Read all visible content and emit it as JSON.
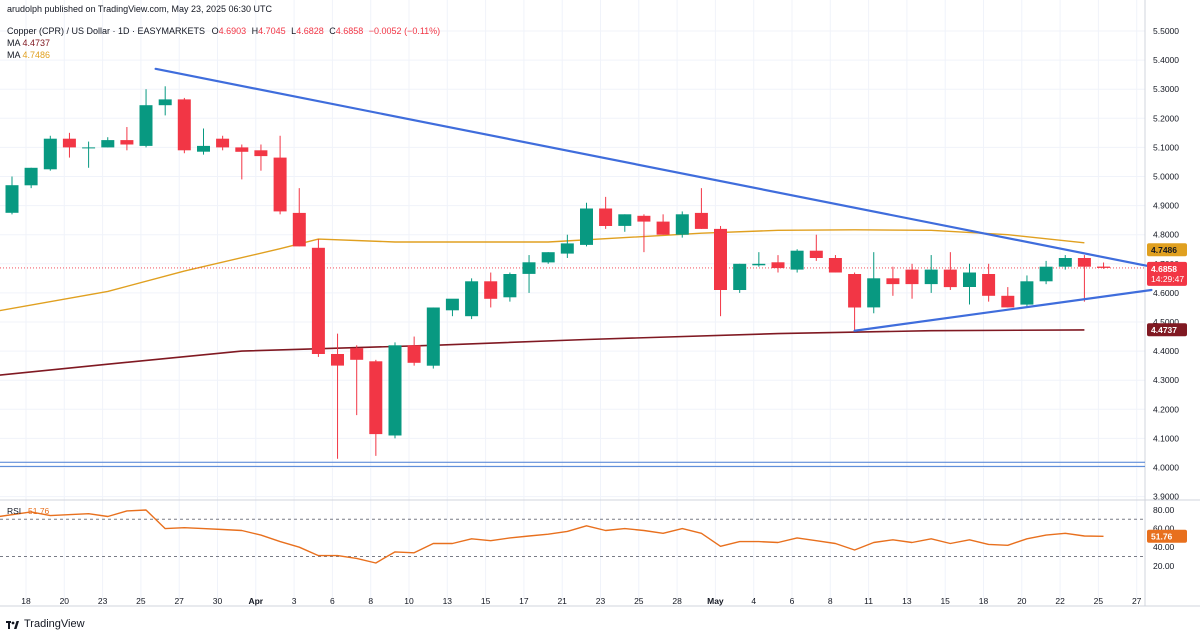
{
  "header": {
    "published": "arudolph published on TradingView.com, May 23, 2025 06:30 UTC",
    "symbol": "Copper (CPR) / US Dollar · 1D · EASYMARKETS",
    "ohlc": {
      "o_label": "O",
      "o": "4.6903",
      "h_label": "H",
      "h": "4.7045",
      "l_label": "L",
      "l": "4.6828",
      "c_label": "C",
      "c": "4.6858",
      "change": "−0.0052 (−0.11%)"
    },
    "ma1": {
      "label": "MA",
      "value": "4.4737",
      "color": "#801922"
    },
    "ma2": {
      "label": "MA",
      "value": "4.7486",
      "color": "#e0a020"
    }
  },
  "brand": {
    "text": "TradingView"
  },
  "colors": {
    "up": "#089981",
    "down": "#f23645",
    "trendline": "#3f6ddc",
    "rsi": "#e8701e",
    "support": "#4a7fd4"
  },
  "chart_data": [
    {
      "type": "candlestick",
      "ylim": [
        3.9,
        5.55
      ],
      "y_ticks": [
        "5.5000",
        "5.4000",
        "5.3000",
        "5.2000",
        "5.1000",
        "5.0000",
        "4.9000",
        "4.8000",
        "4.7000",
        "4.6000",
        "4.5000",
        "4.4000",
        "4.3000",
        "4.2000",
        "4.1000",
        "4.0000",
        "3.9000"
      ],
      "x_ticks": [
        "18",
        "20",
        "23",
        "25",
        "27",
        "30",
        "Apr",
        "3",
        "6",
        "8",
        "10",
        "13",
        "15",
        "17",
        "21",
        "23",
        "25",
        "28",
        "May",
        "4",
        "6",
        "8",
        "11",
        "13",
        "15",
        "18",
        "20",
        "22",
        "25",
        "27"
      ],
      "last_price": {
        "value": 4.6858,
        "label": "4.6858",
        "countdown": "14:29:47"
      },
      "candles": [
        {
          "o": 4.875,
          "h": 5.0,
          "l": 4.87,
          "c": 4.97
        },
        {
          "o": 4.97,
          "h": 5.03,
          "l": 4.96,
          "c": 5.03
        },
        {
          "o": 5.025,
          "h": 5.14,
          "l": 5.02,
          "c": 5.13
        },
        {
          "o": 5.13,
          "h": 5.15,
          "l": 5.065,
          "c": 5.1
        },
        {
          "o": 5.1,
          "h": 5.12,
          "l": 5.03,
          "c": 5.1
        },
        {
          "o": 5.1,
          "h": 5.135,
          "l": 5.1,
          "c": 5.125
        },
        {
          "o": 5.125,
          "h": 5.17,
          "l": 5.09,
          "c": 5.11
        },
        {
          "o": 5.105,
          "h": 5.3,
          "l": 5.1,
          "c": 5.245
        },
        {
          "o": 5.245,
          "h": 5.31,
          "l": 5.21,
          "c": 5.265
        },
        {
          "o": 5.265,
          "h": 5.27,
          "l": 5.08,
          "c": 5.09
        },
        {
          "o": 5.085,
          "h": 5.165,
          "l": 5.075,
          "c": 5.105
        },
        {
          "o": 5.13,
          "h": 5.14,
          "l": 5.09,
          "c": 5.1
        },
        {
          "o": 5.1,
          "h": 5.11,
          "l": 4.99,
          "c": 5.085
        },
        {
          "o": 5.09,
          "h": 5.11,
          "l": 5.02,
          "c": 5.07
        },
        {
          "o": 5.065,
          "h": 5.14,
          "l": 4.87,
          "c": 4.88
        },
        {
          "o": 4.875,
          "h": 4.96,
          "l": 4.76,
          "c": 4.76
        },
        {
          "o": 4.755,
          "h": 4.785,
          "l": 4.38,
          "c": 4.39
        },
        {
          "o": 4.39,
          "h": 4.46,
          "l": 4.03,
          "c": 4.35
        },
        {
          "o": 4.41,
          "h": 4.42,
          "l": 4.18,
          "c": 4.37
        },
        {
          "o": 4.365,
          "h": 4.37,
          "l": 4.04,
          "c": 4.115
        },
        {
          "o": 4.11,
          "h": 4.43,
          "l": 4.1,
          "c": 4.42
        },
        {
          "o": 4.42,
          "h": 4.45,
          "l": 4.35,
          "c": 4.36
        },
        {
          "o": 4.35,
          "h": 4.55,
          "l": 4.34,
          "c": 4.55
        },
        {
          "o": 4.54,
          "h": 4.57,
          "l": 4.52,
          "c": 4.58
        },
        {
          "o": 4.52,
          "h": 4.65,
          "l": 4.51,
          "c": 4.64
        },
        {
          "o": 4.64,
          "h": 4.67,
          "l": 4.55,
          "c": 4.58
        },
        {
          "o": 4.585,
          "h": 4.67,
          "l": 4.57,
          "c": 4.665
        },
        {
          "o": 4.665,
          "h": 4.73,
          "l": 4.6,
          "c": 4.705
        },
        {
          "o": 4.705,
          "h": 4.74,
          "l": 4.7,
          "c": 4.74
        },
        {
          "o": 4.735,
          "h": 4.8,
          "l": 4.72,
          "c": 4.77
        },
        {
          "o": 4.765,
          "h": 4.91,
          "l": 4.76,
          "c": 4.89
        },
        {
          "o": 4.89,
          "h": 4.93,
          "l": 4.82,
          "c": 4.83
        },
        {
          "o": 4.83,
          "h": 4.87,
          "l": 4.81,
          "c": 4.87
        },
        {
          "o": 4.865,
          "h": 4.87,
          "l": 4.74,
          "c": 4.845
        },
        {
          "o": 4.845,
          "h": 4.87,
          "l": 4.8,
          "c": 4.8
        },
        {
          "o": 4.8,
          "h": 4.88,
          "l": 4.79,
          "c": 4.87
        },
        {
          "o": 4.875,
          "h": 4.96,
          "l": 4.82,
          "c": 4.82
        },
        {
          "o": 4.82,
          "h": 4.83,
          "l": 4.52,
          "c": 4.61
        },
        {
          "o": 4.61,
          "h": 4.7,
          "l": 4.6,
          "c": 4.7
        },
        {
          "o": 4.695,
          "h": 4.74,
          "l": 4.69,
          "c": 4.7
        },
        {
          "o": 4.705,
          "h": 4.73,
          "l": 4.67,
          "c": 4.685
        },
        {
          "o": 4.68,
          "h": 4.75,
          "l": 4.67,
          "c": 4.745
        },
        {
          "o": 4.745,
          "h": 4.8,
          "l": 4.71,
          "c": 4.72
        },
        {
          "o": 4.72,
          "h": 4.73,
          "l": 4.67,
          "c": 4.67
        },
        {
          "o": 4.665,
          "h": 4.67,
          "l": 4.47,
          "c": 4.55
        },
        {
          "o": 4.55,
          "h": 4.74,
          "l": 4.53,
          "c": 4.65
        },
        {
          "o": 4.65,
          "h": 4.69,
          "l": 4.59,
          "c": 4.63
        },
        {
          "o": 4.68,
          "h": 4.7,
          "l": 4.58,
          "c": 4.63
        },
        {
          "o": 4.63,
          "h": 4.73,
          "l": 4.6,
          "c": 4.68
        },
        {
          "o": 4.68,
          "h": 4.74,
          "l": 4.61,
          "c": 4.62
        },
        {
          "o": 4.62,
          "h": 4.7,
          "l": 4.56,
          "c": 4.67
        },
        {
          "o": 4.665,
          "h": 4.7,
          "l": 4.57,
          "c": 4.59
        },
        {
          "o": 4.59,
          "h": 4.62,
          "l": 4.55,
          "c": 4.55
        },
        {
          "o": 4.56,
          "h": 4.66,
          "l": 4.55,
          "c": 4.64
        },
        {
          "o": 4.64,
          "h": 4.71,
          "l": 4.63,
          "c": 4.69
        },
        {
          "o": 4.69,
          "h": 4.73,
          "l": 4.68,
          "c": 4.72
        },
        {
          "o": 4.72,
          "h": 4.73,
          "l": 4.57,
          "c": 4.69
        },
        {
          "o": 4.6903,
          "h": 4.7045,
          "l": 4.6828,
          "c": 4.6858
        }
      ],
      "ma_fast": {
        "label": "MA",
        "value": "4.7486",
        "points": [
          [
            -1,
            4.535
          ],
          [
            5,
            4.605
          ],
          [
            9,
            4.675
          ],
          [
            14,
            4.752
          ],
          [
            16,
            4.785
          ],
          [
            20,
            4.775
          ],
          [
            28,
            4.775
          ],
          [
            32,
            4.79
          ],
          [
            36,
            4.805
          ],
          [
            40,
            4.815
          ],
          [
            44,
            4.817
          ],
          [
            48,
            4.815
          ],
          [
            52,
            4.8
          ],
          [
            56,
            4.772
          ]
        ]
      },
      "ma_slow": {
        "label": "MA",
        "value": "4.4737",
        "points": [
          [
            -1,
            4.315
          ],
          [
            5,
            4.355
          ],
          [
            12,
            4.4
          ],
          [
            22,
            4.42
          ],
          [
            30,
            4.44
          ],
          [
            40,
            4.46
          ],
          [
            48,
            4.47
          ],
          [
            56,
            4.473
          ]
        ]
      },
      "trendlines": [
        {
          "from": [
            7.5,
            5.37
          ],
          "to": [
            59.5,
            4.69
          ]
        },
        {
          "from": [
            44,
            4.47
          ],
          "to": [
            59.5,
            4.61
          ]
        }
      ],
      "support_lines": [
        4.018,
        4.004
      ]
    },
    {
      "type": "line",
      "title": "RSI",
      "last_value": "51.76",
      "ylim": [
        10,
        90
      ],
      "y_ticks": [
        "80.00",
        "60.00",
        "40.00",
        "20.00"
      ],
      "levels": [
        70,
        30
      ],
      "points": [
        [
          -1,
          72
        ],
        [
          1,
          78
        ],
        [
          2,
          74
        ],
        [
          4,
          76
        ],
        [
          5,
          73
        ],
        [
          6,
          79
        ],
        [
          7,
          80
        ],
        [
          8,
          60
        ],
        [
          9,
          61
        ],
        [
          10,
          60
        ],
        [
          11,
          59
        ],
        [
          12,
          58
        ],
        [
          13,
          53
        ],
        [
          14,
          46
        ],
        [
          15,
          40
        ],
        [
          16,
          31
        ],
        [
          17,
          31
        ],
        [
          18,
          28
        ],
        [
          19,
          23
        ],
        [
          20,
          35
        ],
        [
          21,
          34
        ],
        [
          22,
          44
        ],
        [
          23,
          44
        ],
        [
          24,
          49
        ],
        [
          25,
          47
        ],
        [
          26,
          50
        ],
        [
          27,
          52
        ],
        [
          28,
          54
        ],
        [
          29,
          57
        ],
        [
          30,
          63
        ],
        [
          31,
          58
        ],
        [
          32,
          60
        ],
        [
          33,
          58
        ],
        [
          34,
          55
        ],
        [
          35,
          60
        ],
        [
          36,
          55
        ],
        [
          37,
          41
        ],
        [
          38,
          46
        ],
        [
          39,
          46
        ],
        [
          40,
          45
        ],
        [
          41,
          50
        ],
        [
          42,
          47
        ],
        [
          43,
          44
        ],
        [
          44,
          37
        ],
        [
          45,
          45
        ],
        [
          46,
          48
        ],
        [
          47,
          45
        ],
        [
          48,
          49
        ],
        [
          49,
          44
        ],
        [
          50,
          48
        ],
        [
          51,
          43
        ],
        [
          52,
          42
        ],
        [
          53,
          49
        ],
        [
          54,
          53
        ],
        [
          55,
          55
        ],
        [
          56,
          52
        ],
        [
          57,
          51.76
        ]
      ]
    }
  ]
}
